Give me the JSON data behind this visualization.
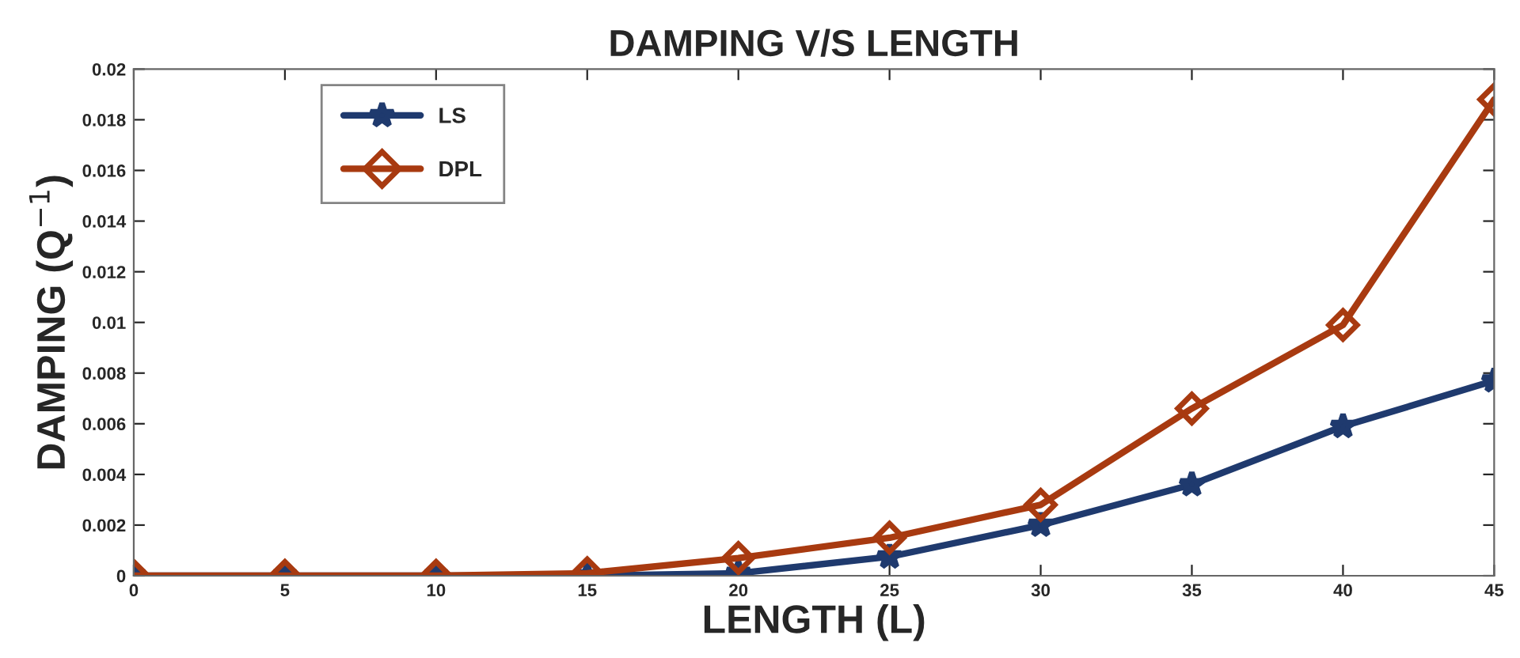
{
  "chart_data": {
    "type": "line",
    "title": "DAMPING V/S LENGTH",
    "xlabel": "LENGTH (L)",
    "ylabel": "DAMPING (Q$^{−1}$)",
    "x": [
      0,
      5,
      10,
      15,
      20,
      25,
      30,
      35,
      40,
      45
    ],
    "series": [
      {
        "name": "LS",
        "color": "#1f3a6e",
        "marker": "star",
        "values": [
          0,
          0,
          0,
          0,
          0.0001,
          0.00075,
          0.002,
          0.0036,
          0.0059,
          0.0077
        ]
      },
      {
        "name": "DPL",
        "color": "#a83a10",
        "marker": "diamond",
        "values": [
          0,
          0,
          0,
          0.0001,
          0.0007,
          0.0015,
          0.0028,
          0.0066,
          0.0099,
          0.0188
        ]
      }
    ],
    "xlim": [
      0,
      45
    ],
    "xticks": [
      0,
      5,
      10,
      15,
      20,
      25,
      30,
      35,
      40,
      45
    ],
    "ylim": [
      0,
      0.02
    ],
    "yticks": [
      0,
      0.002,
      0.004,
      0.006,
      0.008,
      0.01,
      0.012,
      0.014,
      0.016,
      0.018,
      0.02
    ],
    "grid": false,
    "legend": "top left",
    "line_style": "solid"
  }
}
